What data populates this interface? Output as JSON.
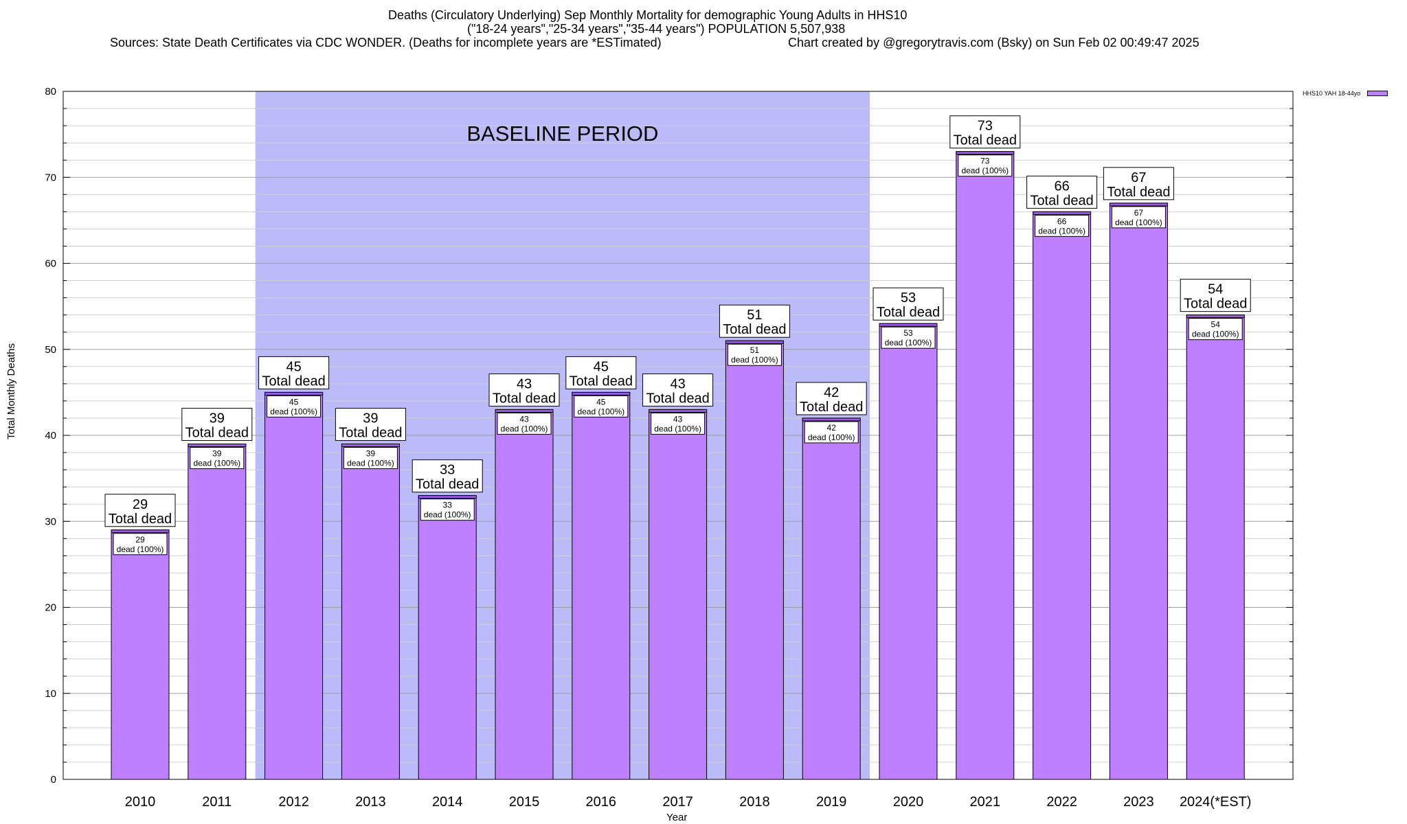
{
  "title": {
    "line1": "Deaths (Circulatory Underlying) Sep Monthly Mortality for demographic Young Adults in HHS10",
    "line2": "(\"18-24 years\",\"25-34 years\",\"35-44 years\") POPULATION 5,507,938",
    "line3_left": "Sources: State Death Certificates via CDC WONDER. (Deaths for incomplete years are *ESTimated)",
    "line3_right": "Chart created by @gregorytravis.com (Bsky) on Sun Feb 02 00:49:47 2025"
  },
  "chart_data": {
    "type": "bar",
    "title": "Deaths (Circulatory Underlying) Sep Monthly Mortality for demographic Young Adults in HHS10",
    "xlabel": "Year",
    "ylabel": "Total Monthly Deaths",
    "categories": [
      "2010",
      "2011",
      "2012",
      "2013",
      "2014",
      "2015",
      "2016",
      "2017",
      "2018",
      "2019",
      "2020",
      "2021",
      "2022",
      "2023",
      "2024(*EST)"
    ],
    "series": [
      {
        "name": "HHS10 YAH 18-44yo",
        "values": [
          29,
          39,
          45,
          39,
          33,
          43,
          45,
          43,
          51,
          42,
          53,
          73,
          66,
          67,
          54
        ]
      }
    ],
    "ylim": [
      0,
      80
    ],
    "yticks": [
      0,
      10,
      20,
      30,
      40,
      50,
      60,
      70,
      80
    ],
    "grid": true,
    "legend_position": "top-right",
    "colors": {
      "bar": "#bf80ff",
      "bar_top": "#9b5de5",
      "baseline_shade": "#bbbbf9",
      "grid": "#b0b0b0"
    },
    "label_text": {
      "total": "Total dead",
      "inner": "dead (100%)"
    },
    "baseline": {
      "label": "BASELINE PERIOD",
      "start_category": "2012",
      "end_category": "2019"
    }
  }
}
